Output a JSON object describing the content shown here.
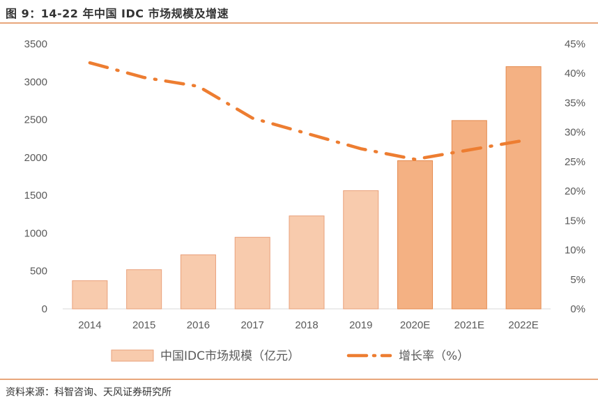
{
  "title": "图 9：14-22 年中国 IDC 市场规模及增速",
  "source": "资料来源：科智咨询、天风证券研究所",
  "colors": {
    "bar_light": "#F8CBAD",
    "bar_dark": "#F4B183",
    "line": "#ED7D31",
    "rule": "#E8A67B"
  },
  "chart_data": {
    "type": "bar",
    "categories": [
      "2014",
      "2015",
      "2016",
      "2017",
      "2018",
      "2019",
      "2020E",
      "2021E",
      "2022E"
    ],
    "series": [
      {
        "name": "中国IDC市场规模（亿元）",
        "type": "bar",
        "axis": "left",
        "values": [
          372,
          518,
          714,
          946,
          1228,
          1562,
          1958,
          2488,
          3200
        ]
      },
      {
        "name": "增长率（%）",
        "type": "line",
        "axis": "right",
        "values": [
          41.8,
          39.3,
          37.8,
          32.4,
          29.8,
          27.2,
          25.4,
          27.0,
          28.6
        ]
      }
    ],
    "left_axis": {
      "ylim": [
        0,
        3500
      ],
      "ticks": [
        "0",
        "500",
        "1000",
        "1500",
        "2000",
        "2500",
        "3000",
        "3500"
      ]
    },
    "right_axis": {
      "ylim": [
        0,
        45
      ],
      "ticks": [
        "0%",
        "5%",
        "10%",
        "15%",
        "20%",
        "25%",
        "30%",
        "35%",
        "40%",
        "45%"
      ]
    },
    "grid": false,
    "legend_position": "bottom",
    "legend": [
      {
        "label": "中国IDC市场规模（亿元）",
        "kind": "bar"
      },
      {
        "label": "增长率（%）",
        "kind": "line"
      }
    ]
  }
}
